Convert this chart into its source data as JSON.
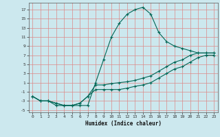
{
  "xlabel": "Humidex (Indice chaleur)",
  "bg_color": "#cce8ee",
  "grid_color": "#dd8888",
  "line_color": "#006655",
  "xlim": [
    -0.5,
    23.5
  ],
  "ylim": [
    -5.5,
    18.5
  ],
  "yticks": [
    -5,
    -3,
    -1,
    1,
    3,
    5,
    7,
    9,
    11,
    13,
    15,
    17
  ],
  "xticks": [
    0,
    1,
    2,
    3,
    4,
    5,
    6,
    7,
    8,
    9,
    10,
    11,
    12,
    13,
    14,
    15,
    16,
    17,
    18,
    19,
    20,
    21,
    22,
    23
  ],
  "line1_x": [
    0,
    1,
    2,
    3,
    4,
    5,
    6,
    7,
    8,
    9,
    10,
    11,
    12,
    13,
    14,
    15,
    16,
    17,
    18,
    19,
    20,
    21,
    22,
    23
  ],
  "line1_y": [
    -2,
    -3,
    -3,
    -4,
    -4,
    -4,
    -4,
    -4,
    1,
    6,
    11,
    14,
    16,
    17,
    17.5,
    16,
    12,
    10,
    9,
    8.5,
    8,
    7.5,
    7.5,
    7.5
  ],
  "line2_x": [
    0,
    1,
    2,
    3,
    4,
    5,
    6,
    7,
    8,
    9,
    10,
    11,
    12,
    13,
    14,
    15,
    16,
    17,
    18,
    19,
    20,
    21,
    22,
    23
  ],
  "line2_y": [
    -2,
    -3,
    -3,
    -3.5,
    -4,
    -4,
    -3.5,
    -2,
    0.5,
    0.5,
    0.8,
    1.0,
    1.2,
    1.5,
    2,
    2.5,
    3.5,
    4.5,
    5.5,
    6,
    7,
    7.5,
    7.5,
    7.5
  ],
  "line3_x": [
    0,
    1,
    2,
    3,
    4,
    5,
    6,
    7,
    8,
    9,
    10,
    11,
    12,
    13,
    14,
    15,
    16,
    17,
    18,
    19,
    20,
    21,
    22,
    23
  ],
  "line3_y": [
    -2,
    -3,
    -3,
    -3.5,
    -4,
    -4,
    -3.5,
    -2,
    -0.5,
    -0.5,
    -0.5,
    -0.5,
    -0.2,
    0.2,
    0.5,
    1,
    2,
    3,
    4,
    4.5,
    5.5,
    6.5,
    7,
    7
  ]
}
